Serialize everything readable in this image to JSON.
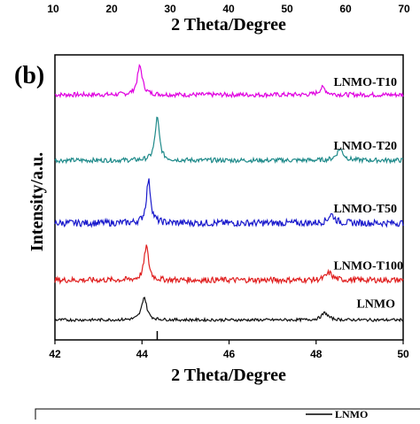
{
  "top_panel": {
    "tick_labels": [
      "10",
      "20",
      "30",
      "40",
      "50",
      "60",
      "70"
    ],
    "xlabel": "2 Theta/Degree"
  },
  "panel_label": "(b)",
  "chart_data": {
    "type": "line",
    "title": "",
    "xlabel": "2 Theta/Degree",
    "ylabel": "Intensity/a.u.",
    "xlim": [
      42,
      50
    ],
    "xticks": [
      42,
      44,
      46,
      48,
      50
    ],
    "grid": false,
    "reference_line_x": 44.35,
    "series": [
      {
        "name": "LNMO-T10",
        "color": "#e000e0",
        "baseline": 0.86,
        "noise": 0.008,
        "peaks": [
          {
            "x": 43.95,
            "h": 0.1,
            "w": 0.07
          },
          {
            "x": 48.15,
            "h": 0.025,
            "w": 0.09
          }
        ]
      },
      {
        "name": "LNMO-T20",
        "color": "#1f8a8a",
        "baseline": 0.63,
        "noise": 0.008,
        "peaks": [
          {
            "x": 44.35,
            "h": 0.15,
            "w": 0.06
          },
          {
            "x": 48.55,
            "h": 0.04,
            "w": 0.09
          }
        ]
      },
      {
        "name": "LNMO-T50",
        "color": "#1a1acc",
        "baseline": 0.41,
        "noise": 0.012,
        "peaks": [
          {
            "x": 44.15,
            "h": 0.15,
            "w": 0.06
          },
          {
            "x": 48.35,
            "h": 0.03,
            "w": 0.09
          }
        ]
      },
      {
        "name": "LNMO-T100",
        "color": "#e01f1f",
        "baseline": 0.21,
        "noise": 0.01,
        "peaks": [
          {
            "x": 44.1,
            "h": 0.12,
            "w": 0.06
          },
          {
            "x": 48.3,
            "h": 0.025,
            "w": 0.09
          }
        ]
      },
      {
        "name": "LNMO",
        "color": "#111111",
        "baseline": 0.07,
        "noise": 0.005,
        "peaks": [
          {
            "x": 44.05,
            "h": 0.08,
            "w": 0.07
          },
          {
            "x": 48.2,
            "h": 0.025,
            "w": 0.09
          }
        ]
      }
    ]
  },
  "legend": {
    "label": "LNMO"
  }
}
